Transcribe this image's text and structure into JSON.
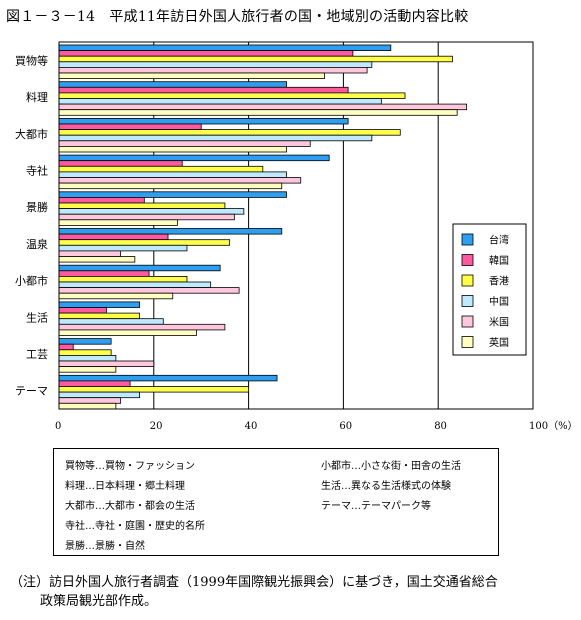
{
  "title": "図１－３－14　平成11年訪日外国人旅行者の国・地域別の活動内容比較",
  "chart_data": {
    "type": "bar",
    "orientation": "horizontal",
    "categories": [
      "買物等",
      "料理",
      "大都市",
      "寺社",
      "景勝",
      "温泉",
      "小都市",
      "生活",
      "工芸",
      "テーマ"
    ],
    "series": [
      {
        "name": "台湾",
        "color": "#2e9ff0",
        "values": [
          70,
          48,
          61,
          57,
          48,
          47,
          34,
          17,
          11,
          46
        ]
      },
      {
        "name": "韓国",
        "color": "#ff5aa0",
        "values": [
          62,
          61,
          30,
          26,
          18,
          23,
          19,
          10,
          3,
          15
        ]
      },
      {
        "name": "香港",
        "color": "#ffff4a",
        "values": [
          83,
          73,
          72,
          43,
          35,
          36,
          27,
          17,
          11,
          40
        ]
      },
      {
        "name": "中国",
        "color": "#bfe9ff",
        "values": [
          66,
          68,
          66,
          48,
          39,
          27,
          32,
          22,
          12,
          17
        ]
      },
      {
        "name": "米国",
        "color": "#ffc7dd",
        "values": [
          65,
          86,
          53,
          51,
          37,
          13,
          38,
          35,
          20,
          13
        ]
      },
      {
        "name": "英国",
        "color": "#ffffc0",
        "values": [
          56,
          84,
          48,
          47,
          25,
          16,
          24,
          29,
          12,
          12
        ]
      }
    ],
    "xlim": [
      0,
      100
    ],
    "xticks": [
      "0",
      "20",
      "40",
      "60",
      "80",
      "100（%）"
    ],
    "grid": true,
    "legend_position": "right"
  },
  "abbreviations": {
    "left": [
      "買物等…買物・ファッション",
      "料理…日本料理・郷土料理",
      "大都市…大都市・都会の生活",
      "寺社…寺社・庭園・歴史的名所",
      "景勝…景勝・自然"
    ],
    "right": [
      "小都市…小さな街・田舎の生活",
      "生活…異なる生活様式の体験",
      "テーマ…テーマパーク等"
    ]
  },
  "note": {
    "line1": "（注）訪日外国人旅行者調査（1999年国際観光振興会）に基づき，国土交通省総合",
    "line2": "政策局観光部作成。"
  }
}
